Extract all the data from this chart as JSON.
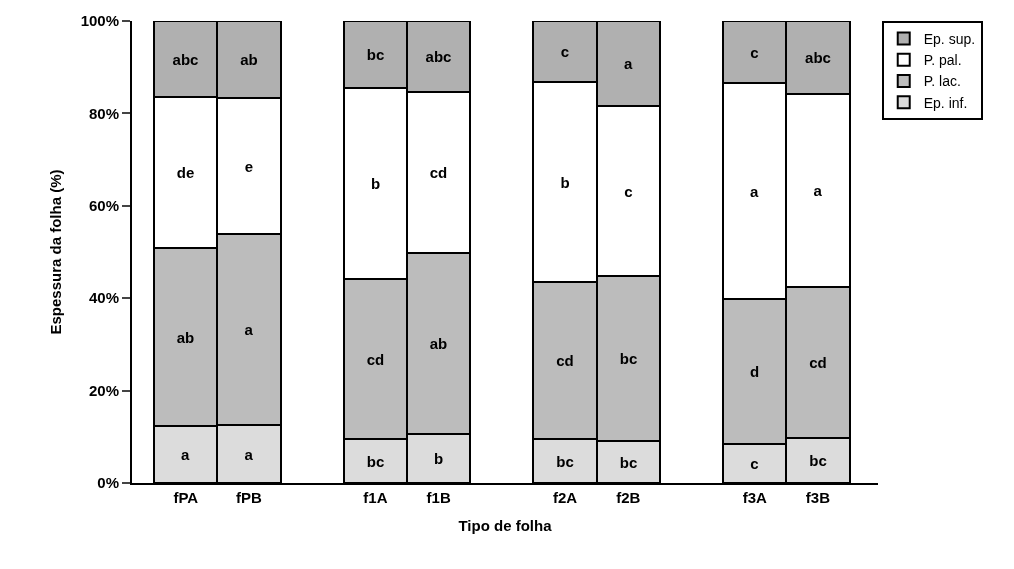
{
  "chart_data": {
    "type": "bar",
    "stacked": true,
    "xlabel": "Tipo de folha",
    "ylabel": "Espessura da folha (%)",
    "categories": [
      "fPA",
      "fPB",
      null,
      "f1A",
      "f1B",
      null,
      "f2A",
      "f2B",
      null,
      "f3A",
      "f3B"
    ],
    "series": [
      {
        "name": "Ep. inf.",
        "color": "#dcdcdc",
        "values": [
          12.3,
          12.5,
          null,
          9.5,
          10.5,
          null,
          9.5,
          9.2,
          null,
          8.5,
          9.7
        ],
        "value_labels": [
          "a",
          "a",
          null,
          "bc",
          "b",
          null,
          "bc",
          "bc",
          null,
          "c",
          "bc"
        ]
      },
      {
        "name": "P. lac.",
        "color": "#bcbcbc",
        "values": [
          38.5,
          41.3,
          null,
          34.6,
          39.2,
          null,
          34.1,
          35.6,
          null,
          31.3,
          32.7
        ],
        "value_labels": [
          "ab",
          "a",
          null,
          "cd",
          "ab",
          null,
          "cd",
          "bc",
          null,
          "d",
          "cd"
        ]
      },
      {
        "name": "P. pal.",
        "color": "#ffffff",
        "values": [
          32.8,
          29.5,
          null,
          41.5,
          35.0,
          null,
          43.2,
          36.7,
          null,
          46.7,
          41.9
        ],
        "value_labels": [
          "de",
          "e",
          null,
          "b",
          "cd",
          null,
          "b",
          "c",
          null,
          "a",
          "a"
        ]
      },
      {
        "name": "Ep. sup.",
        "color": "#b0b0b0",
        "values": [
          16.4,
          16.7,
          null,
          14.4,
          15.3,
          null,
          13.1,
          18.5,
          null,
          13.5,
          15.6
        ],
        "value_labels": [
          "abc",
          "ab",
          null,
          "bc",
          "abc",
          null,
          "c",
          "a",
          null,
          "c",
          "abc"
        ]
      }
    ],
    "ylim": [
      0,
      100
    ],
    "yticks": [
      {
        "value": 0,
        "label": "0%"
      },
      {
        "value": 20,
        "label": "20%"
      },
      {
        "value": 40,
        "label": "40%"
      },
      {
        "value": 60,
        "label": "60%"
      },
      {
        "value": 80,
        "label": "80%"
      },
      {
        "value": 100,
        "label": "100%"
      }
    ],
    "legend": "top right",
    "grid": false
  }
}
